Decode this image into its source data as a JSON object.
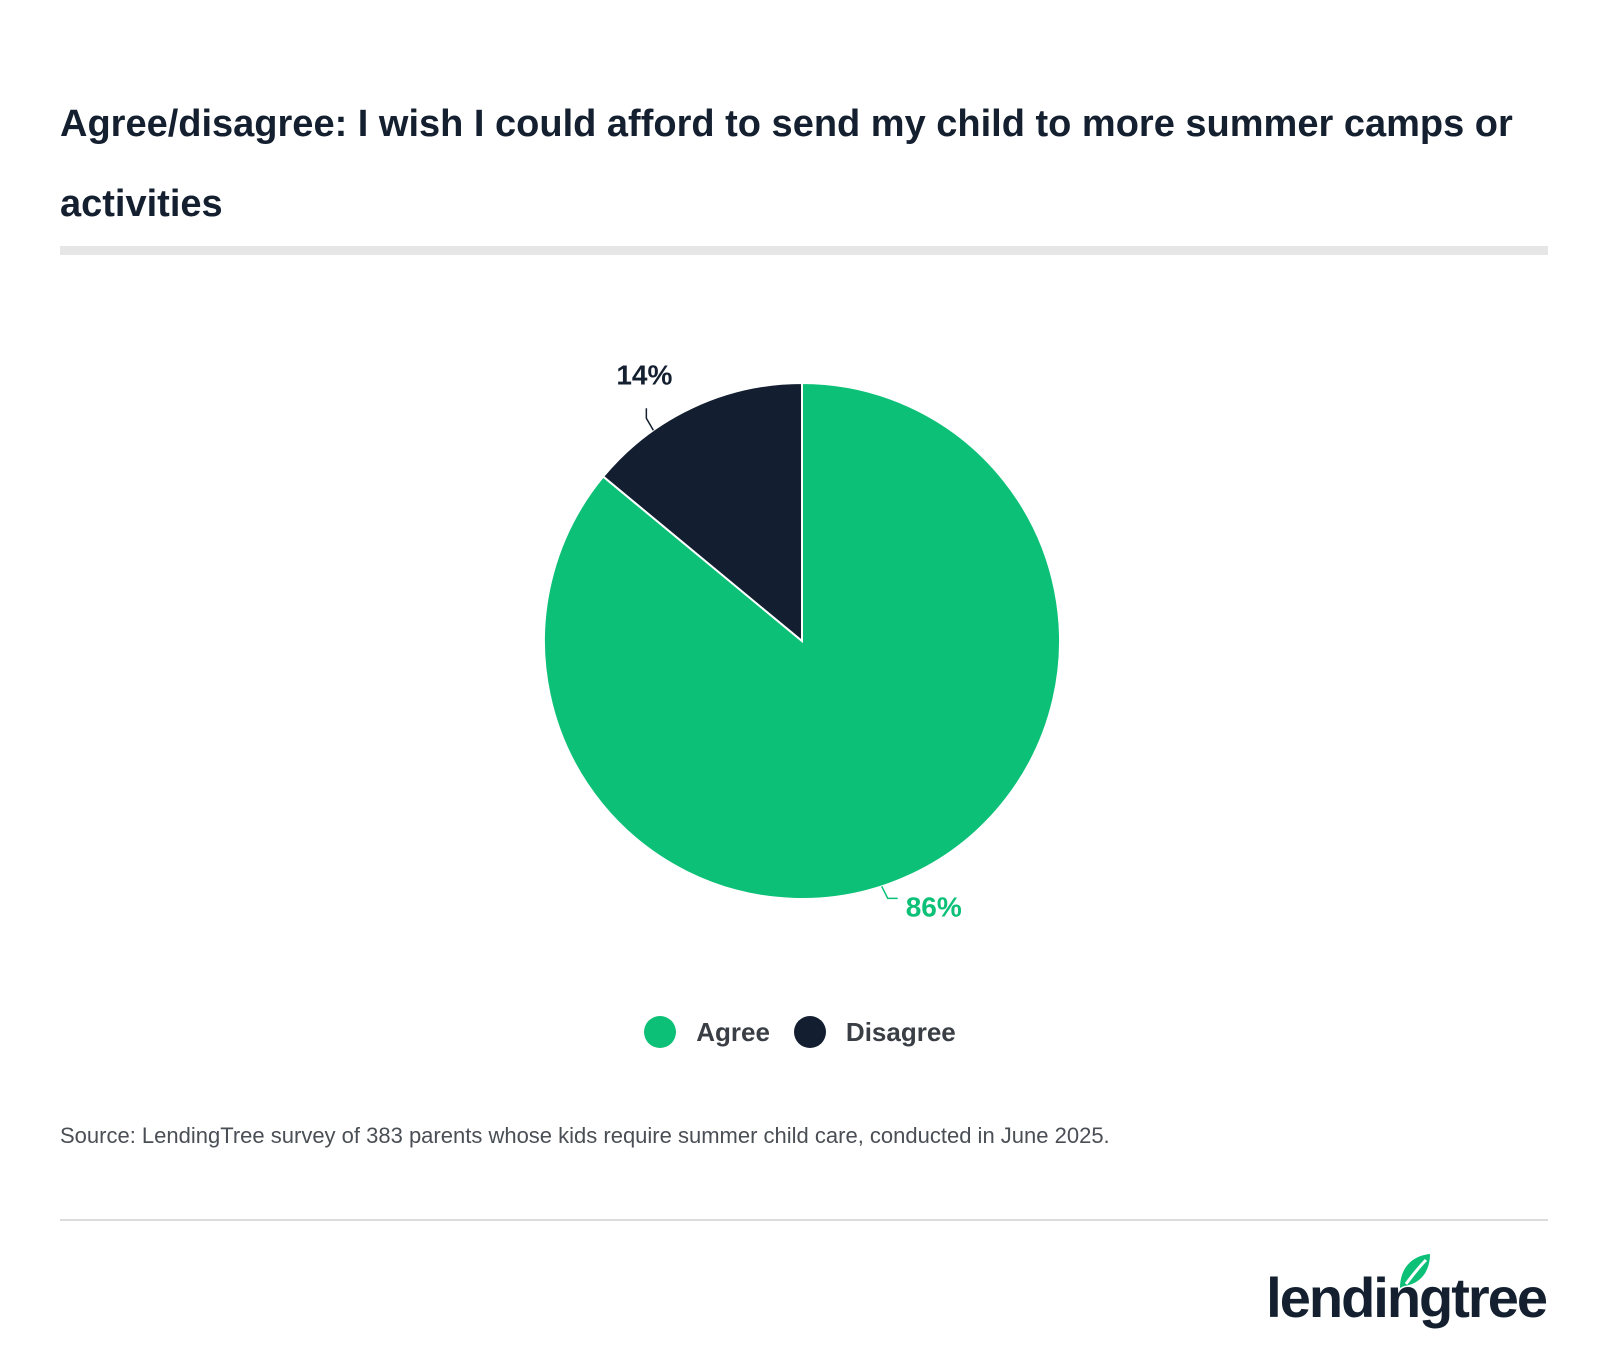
{
  "title": "Agree/disagree: I wish I could afford to send my child to more summer camps or activities",
  "source": "Source: LendingTree survey of 383 parents whose kids require summer child care, conducted in June 2025.",
  "logo": {
    "text": "lendingtree",
    "mark": "leaf-icon"
  },
  "colors": {
    "agree": "#0cc177",
    "disagree": "#131f30",
    "text": "#14202f"
  },
  "chart_data": {
    "type": "pie",
    "title": "Agree/disagree: I wish I could afford to send my child to more summer camps or activities",
    "slices": [
      {
        "label": "Agree",
        "value": 86,
        "display": "86%",
        "color": "#0cc177"
      },
      {
        "label": "Disagree",
        "value": 14,
        "display": "14%",
        "color": "#131f30"
      }
    ],
    "legend": [
      "Agree",
      "Disagree"
    ],
    "legend_position": "bottom-center"
  }
}
